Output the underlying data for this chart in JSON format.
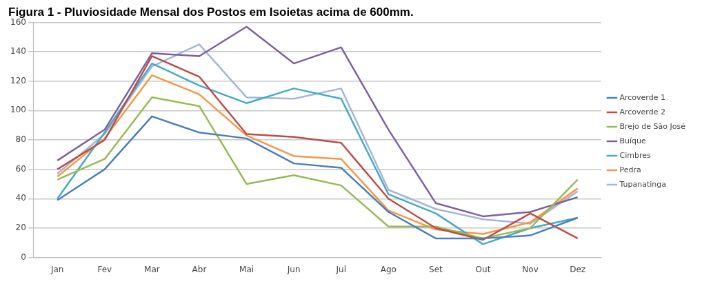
{
  "chart_data": {
    "type": "line",
    "title": "Figura 1 - Pluviosidade Mensal dos Postos em Isoietas acima de 600mm.",
    "categories": [
      "Jan",
      "Fev",
      "Mar",
      "Abr",
      "Mai",
      "Jun",
      "Jul",
      "Ago",
      "Set",
      "Out",
      "Nov",
      "Dez"
    ],
    "series": [
      {
        "name": "Arcoverde 1",
        "color": "#4a7ebb",
        "values": [
          39,
          60,
          96,
          85,
          81,
          64,
          61,
          31,
          13,
          13,
          15,
          27
        ]
      },
      {
        "name": "Arcoverde 2",
        "color": "#be4b48",
        "values": [
          60,
          80,
          137,
          123,
          84,
          82,
          78,
          40,
          20,
          12,
          30,
          13
        ]
      },
      {
        "name": "Brejo de São José",
        "color": "#98b954",
        "values": [
          53,
          67,
          109,
          103,
          50,
          56,
          49,
          21,
          21,
          13,
          20,
          53
        ]
      },
      {
        "name": "Buíque",
        "color": "#7d60a0",
        "values": [
          66,
          87,
          139,
          137,
          157,
          132,
          143,
          87,
          37,
          28,
          31,
          41
        ]
      },
      {
        "name": "Cimbres",
        "color": "#46aac5",
        "values": [
          40,
          85,
          132,
          117,
          105,
          115,
          108,
          43,
          30,
          9,
          20,
          27
        ]
      },
      {
        "name": "Pedra",
        "color": "#f79646",
        "values": [
          55,
          81,
          124,
          111,
          83,
          69,
          67,
          32,
          19,
          16,
          24,
          47
        ]
      },
      {
        "name": "Tupanatinga",
        "color": "#a5b6d6",
        "values": [
          57,
          84,
          130,
          145,
          109,
          108,
          115,
          46,
          33,
          26,
          23,
          45
        ]
      }
    ],
    "ylim": [
      0,
      160
    ],
    "yticks": [
      0,
      20,
      40,
      60,
      80,
      100,
      120,
      140,
      160
    ],
    "grid": "y",
    "legend": "right",
    "marker": "none",
    "line_style": "solid"
  }
}
